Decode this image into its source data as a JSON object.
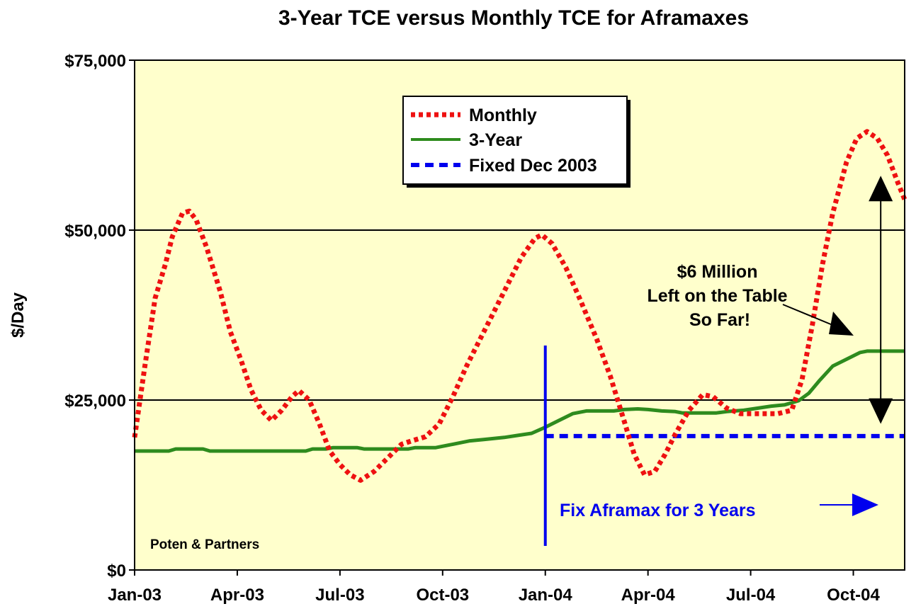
{
  "chart_data": {
    "type": "line",
    "title": "3-Year TCE versus Monthly TCE for Aframaxes",
    "xlabel": "",
    "ylabel": "$/Day",
    "ylim": [
      0,
      75000
    ],
    "xlim": [
      0,
      22.5
    ],
    "y_ticks": [
      {
        "value": 0,
        "label": "$0"
      },
      {
        "value": 25000,
        "label": "$25,000"
      },
      {
        "value": 50000,
        "label": "$50,000"
      },
      {
        "value": 75000,
        "label": "$75,000"
      }
    ],
    "x_ticks": [
      {
        "value": 0,
        "label": "Jan-03"
      },
      {
        "value": 3,
        "label": "Apr-03"
      },
      {
        "value": 6,
        "label": "Jul-03"
      },
      {
        "value": 9,
        "label": "Oct-03"
      },
      {
        "value": 12,
        "label": "Jan-04"
      },
      {
        "value": 15,
        "label": "Apr-04"
      },
      {
        "value": 18,
        "label": "Jul-04"
      },
      {
        "value": 21,
        "label": "Oct-04"
      }
    ],
    "gridlines": [
      25000,
      50000
    ],
    "series": [
      {
        "name": "Monthly",
        "color": "#ee1111",
        "style": "dotted",
        "points": [
          [
            0,
            19500
          ],
          [
            0.3,
            30000
          ],
          [
            0.6,
            40000
          ],
          [
            0.9,
            45000
          ],
          [
            1.1,
            49000
          ],
          [
            1.4,
            52500
          ],
          [
            1.6,
            52800
          ],
          [
            1.8,
            51500
          ],
          [
            2.1,
            47500
          ],
          [
            2.5,
            41000
          ],
          [
            2.8,
            35000
          ],
          [
            3.1,
            31000
          ],
          [
            3.4,
            26500
          ],
          [
            3.7,
            23500
          ],
          [
            4.0,
            22000
          ],
          [
            4.3,
            23500
          ],
          [
            4.6,
            25500
          ],
          [
            4.8,
            26400
          ],
          [
            5.1,
            25000
          ],
          [
            5.4,
            21500
          ],
          [
            5.7,
            17500
          ],
          [
            6.0,
            15500
          ],
          [
            6.3,
            14000
          ],
          [
            6.6,
            13200
          ],
          [
            7.0,
            14500
          ],
          [
            7.4,
            16500
          ],
          [
            7.8,
            18500
          ],
          [
            8.1,
            19000
          ],
          [
            8.5,
            19600
          ],
          [
            8.9,
            21500
          ],
          [
            9.3,
            25500
          ],
          [
            9.7,
            30000
          ],
          [
            10.1,
            34000
          ],
          [
            10.5,
            38000
          ],
          [
            10.9,
            42000
          ],
          [
            11.3,
            46000
          ],
          [
            11.7,
            48800
          ],
          [
            11.9,
            49300
          ],
          [
            12.2,
            48000
          ],
          [
            12.6,
            44500
          ],
          [
            13.0,
            40000
          ],
          [
            13.5,
            34000
          ],
          [
            13.9,
            28500
          ],
          [
            14.3,
            22000
          ],
          [
            14.6,
            17000
          ],
          [
            14.9,
            14000
          ],
          [
            15.2,
            14500
          ],
          [
            15.5,
            17000
          ],
          [
            15.8,
            20000
          ],
          [
            16.2,
            23500
          ],
          [
            16.6,
            25800
          ],
          [
            16.9,
            25500
          ],
          [
            17.3,
            23800
          ],
          [
            17.7,
            23000
          ],
          [
            18.1,
            23000
          ],
          [
            18.5,
            23000
          ],
          [
            18.8,
            23000
          ],
          [
            19.2,
            23500
          ],
          [
            19.5,
            28000
          ],
          [
            19.8,
            36000
          ],
          [
            20.1,
            45000
          ],
          [
            20.4,
            52500
          ],
          [
            20.8,
            60000
          ],
          [
            21.1,
            63500
          ],
          [
            21.4,
            64500
          ],
          [
            21.7,
            63500
          ],
          [
            22.0,
            61000
          ],
          [
            22.3,
            57000
          ],
          [
            22.5,
            54500
          ]
        ]
      },
      {
        "name": "3-Year",
        "color": "#2e8b1e",
        "style": "solid",
        "points": [
          [
            0,
            17500
          ],
          [
            1,
            17500
          ],
          [
            1.2,
            17800
          ],
          [
            2,
            17800
          ],
          [
            2.2,
            17500
          ],
          [
            5,
            17500
          ],
          [
            5.2,
            17800
          ],
          [
            5.6,
            17800
          ],
          [
            5.8,
            18000
          ],
          [
            6.5,
            18000
          ],
          [
            6.7,
            17800
          ],
          [
            8,
            17800
          ],
          [
            8.2,
            18000
          ],
          [
            8.8,
            18000
          ],
          [
            9.3,
            18500
          ],
          [
            9.8,
            19000
          ],
          [
            10.2,
            19200
          ],
          [
            10.8,
            19500
          ],
          [
            11.2,
            19800
          ],
          [
            11.6,
            20100
          ],
          [
            12.0,
            21000
          ],
          [
            12.4,
            22000
          ],
          [
            12.8,
            23000
          ],
          [
            13.2,
            23400
          ],
          [
            14.0,
            23400
          ],
          [
            14.3,
            23600
          ],
          [
            14.7,
            23700
          ],
          [
            15.0,
            23600
          ],
          [
            15.4,
            23400
          ],
          [
            15.8,
            23300
          ],
          [
            16.0,
            23100
          ],
          [
            17.0,
            23100
          ],
          [
            17.3,
            23300
          ],
          [
            17.8,
            23500
          ],
          [
            18.2,
            23800
          ],
          [
            18.6,
            24100
          ],
          [
            19.0,
            24300
          ],
          [
            19.4,
            24900
          ],
          [
            19.7,
            26000
          ],
          [
            20.0,
            27800
          ],
          [
            20.4,
            30000
          ],
          [
            20.8,
            31000
          ],
          [
            21.2,
            32000
          ],
          [
            21.4,
            32200
          ],
          [
            22.5,
            32200
          ]
        ]
      },
      {
        "name": "Fixed Dec 2003",
        "color": "#0000ee",
        "style": "dashed",
        "points": [
          [
            12,
            19700
          ],
          [
            22.5,
            19700
          ]
        ]
      }
    ],
    "legend": {
      "position": "top-center",
      "entries": [
        "Monthly",
        "3-Year",
        "Fixed Dec 2003"
      ]
    },
    "annotations": {
      "gap_lines": [
        "$6 Million",
        "Left on the Table",
        "So Far!"
      ],
      "fix_label": "Fix Aframax for 3 Years",
      "source": "Poten & Partners",
      "vertical_marker_x": 12,
      "gap_arrow_x": 21.8,
      "gap_arrow_range": [
        21500,
        58000
      ]
    },
    "colors": {
      "plot_background": "#ffffcc",
      "axis": "#000000",
      "gridline": "#000000"
    }
  }
}
